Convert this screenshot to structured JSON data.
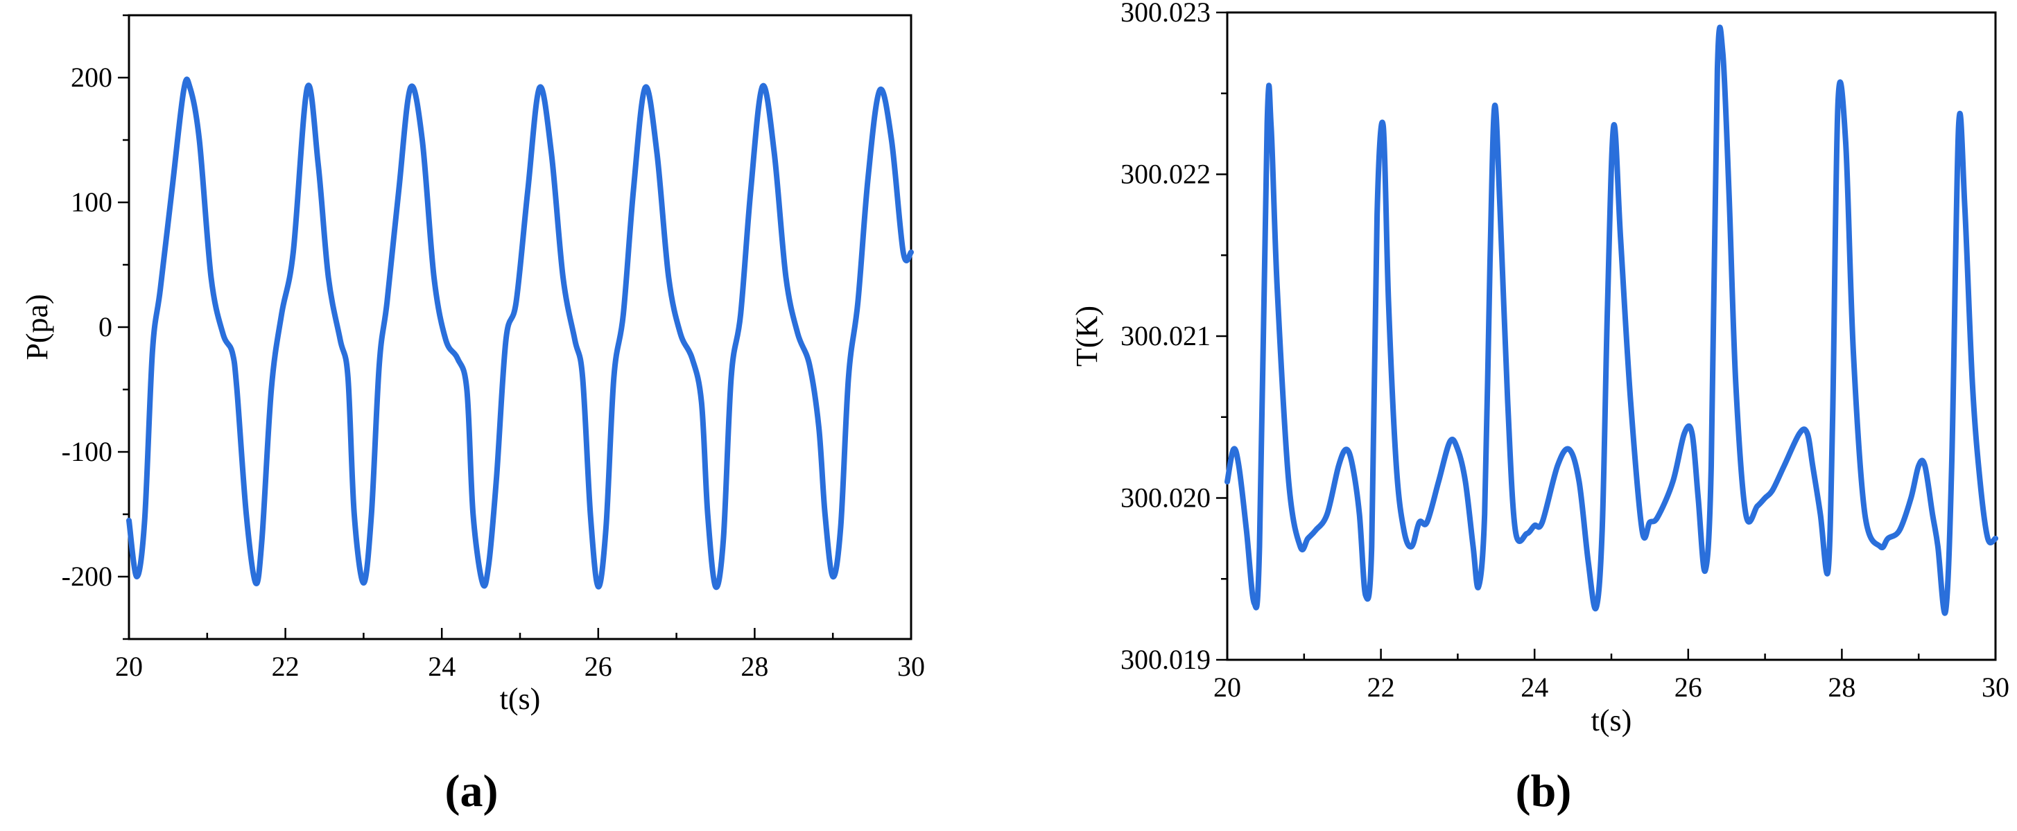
{
  "chart_data": [
    {
      "type": "line",
      "panel_label": "(a)",
      "xlabel": "t(s)",
      "ylabel": "P(pa)",
      "xlim": [
        20,
        30
      ],
      "ylim": [
        -250,
        250
      ],
      "xticks": [
        20,
        22,
        24,
        26,
        28,
        30
      ],
      "xtick_labels": [
        "20",
        "22",
        "24",
        "26",
        "28",
        "30"
      ],
      "yticks": [
        -200,
        -100,
        0,
        100,
        200
      ],
      "ytick_labels": [
        "-200",
        "-100",
        "0",
        "100",
        "200"
      ],
      "grid": false,
      "line_color": "#2a6fdb",
      "series": [
        {
          "x": [
            20.0,
            20.1,
            20.2,
            20.3,
            20.4,
            20.55,
            20.7,
            20.78,
            20.9,
            21.05,
            21.2,
            21.32,
            21.38,
            21.5,
            21.62,
            21.7,
            21.82,
            21.95,
            22.1,
            22.28,
            22.42,
            22.55,
            22.7,
            22.8,
            22.88,
            23.0,
            23.1,
            23.2,
            23.3,
            23.45,
            23.6,
            23.75,
            23.9,
            24.05,
            24.2,
            24.32,
            24.4,
            24.52,
            24.6,
            24.7,
            24.82,
            24.95,
            25.1,
            25.25,
            25.4,
            25.55,
            25.7,
            25.8,
            25.9,
            26.0,
            26.1,
            26.2,
            26.32,
            26.45,
            26.6,
            26.75,
            26.9,
            27.05,
            27.2,
            27.32,
            27.4,
            27.5,
            27.6,
            27.7,
            27.82,
            27.95,
            28.1,
            28.25,
            28.4,
            28.55,
            28.7,
            28.82,
            28.9,
            29.0,
            29.1,
            29.2,
            29.32,
            29.45,
            29.6,
            29.75,
            29.9,
            30.0
          ],
          "y": [
            -155,
            -200,
            -155,
            -20,
            30,
            110,
            190,
            192,
            150,
            40,
            -5,
            -20,
            -50,
            -150,
            -205,
            -170,
            -50,
            10,
            60,
            192,
            130,
            40,
            -10,
            -40,
            -150,
            -205,
            -150,
            -30,
            20,
            110,
            192,
            150,
            40,
            -10,
            -25,
            -50,
            -150,
            -205,
            -190,
            -120,
            -10,
            20,
            110,
            192,
            140,
            40,
            -10,
            -40,
            -150,
            -208,
            -160,
            -40,
            10,
            110,
            192,
            140,
            40,
            -5,
            -25,
            -60,
            -150,
            -208,
            -170,
            -40,
            10,
            110,
            193,
            140,
            40,
            -5,
            -30,
            -80,
            -150,
            -200,
            -160,
            -40,
            20,
            120,
            190,
            150,
            60,
            60
          ]
        }
      ]
    },
    {
      "type": "line",
      "panel_label": "(b)",
      "xlabel": "t(s)",
      "ylabel": "T(K)",
      "xlim": [
        20,
        30
      ],
      "ylim": [
        300.019,
        300.023
      ],
      "xticks": [
        20,
        22,
        24,
        26,
        28,
        30
      ],
      "xtick_labels": [
        "20",
        "22",
        "24",
        "26",
        "28",
        "30"
      ],
      "yticks": [
        300.019,
        300.02,
        300.021,
        300.022,
        300.023
      ],
      "ytick_labels": [
        "300.019",
        "300.020",
        "300.021",
        "300.022",
        "300.023"
      ],
      "grid": false,
      "line_color": "#2a6fdb",
      "series": [
        {
          "x": [
            20.0,
            20.08,
            20.15,
            20.25,
            20.35,
            20.42,
            20.52,
            20.57,
            20.65,
            20.8,
            20.95,
            21.05,
            21.15,
            21.3,
            21.45,
            21.55,
            21.63,
            21.72,
            21.8,
            21.88,
            21.95,
            22.03,
            22.1,
            22.2,
            22.3,
            22.4,
            22.5,
            22.6,
            22.75,
            22.9,
            23.0,
            23.1,
            23.2,
            23.27,
            23.35,
            23.42,
            23.48,
            23.55,
            23.65,
            23.75,
            23.9,
            24.0,
            24.1,
            24.3,
            24.45,
            24.58,
            24.7,
            24.8,
            24.88,
            24.95,
            25.03,
            25.12,
            25.25,
            25.4,
            25.5,
            25.6,
            25.8,
            25.95,
            26.05,
            26.13,
            26.22,
            26.3,
            26.38,
            26.45,
            26.53,
            26.62,
            26.75,
            26.9,
            27.0,
            27.1,
            27.25,
            27.45,
            27.55,
            27.62,
            27.72,
            27.82,
            27.88,
            27.95,
            28.05,
            28.15,
            28.3,
            28.5,
            28.6,
            28.75,
            28.9,
            29.0,
            29.08,
            29.18,
            29.25,
            29.35,
            29.43,
            29.52,
            29.6,
            29.7,
            29.8,
            29.9,
            30.0
          ],
          "y": [
            300.0201,
            300.0203,
            300.0202,
            300.0198,
            300.01935,
            300.0197,
            300.02232,
            300.0223,
            300.0213,
            300.0201,
            300.0197,
            300.01975,
            300.0198,
            300.0199,
            300.0202,
            300.0203,
            300.0202,
            300.0199,
            300.0194,
            300.0197,
            300.02175,
            300.0223,
            300.0212,
            300.0202,
            300.0198,
            300.0197,
            300.01985,
            300.01985,
            300.0201,
            300.02035,
            300.0203,
            300.0201,
            300.0197,
            300.01945,
            300.0199,
            300.02145,
            300.02242,
            300.0218,
            300.0206,
            300.0198,
            300.01978,
            300.01983,
            300.01985,
            300.0202,
            300.0203,
            300.0201,
            300.0196,
            300.01932,
            300.0198,
            300.0212,
            300.0223,
            300.0216,
            300.0206,
            300.0198,
            300.01985,
            300.01988,
            300.0201,
            300.0204,
            300.0204,
            300.02,
            300.01955,
            300.0202,
            300.02265,
            300.02275,
            300.0219,
            300.0207,
            300.0199,
            300.01995,
            300.02,
            300.02005,
            300.0202,
            300.0204,
            300.0204,
            300.0202,
            300.0199,
            300.01955,
            300.0205,
            300.02245,
            300.0222,
            300.0209,
            300.0199,
            300.0197,
            300.01975,
            300.0198,
            300.02,
            300.0202,
            300.0202,
            300.0199,
            300.0197,
            300.0193,
            300.0202,
            300.0223,
            300.0218,
            300.0207,
            300.0201,
            300.01975,
            300.01975
          ]
        }
      ]
    }
  ]
}
